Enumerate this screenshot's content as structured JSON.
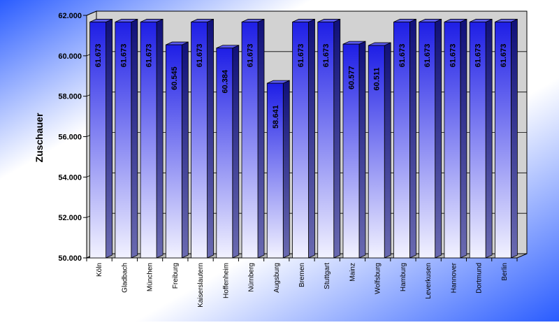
{
  "chart_data": {
    "type": "bar",
    "title": "",
    "xlabel": "",
    "ylabel": "Zuschauer",
    "ylim": [
      50000,
      62000
    ],
    "y_ticks": [
      50000,
      52000,
      54000,
      56000,
      58000,
      60000,
      62000
    ],
    "y_tick_labels": [
      "50.000",
      "52.000",
      "54.000",
      "56.000",
      "58.000",
      "60.000",
      "62.000"
    ],
    "grid": true,
    "legend": "none",
    "style": "3d",
    "categories": [
      "Köln",
      "Gladbach",
      "München",
      "Freiburg",
      "Kaiserslautern",
      "Hoffenheim",
      "Nürnberg",
      "Augsburg",
      "Bremen",
      "Stuttgart",
      "Mainz",
      "Wolfsburg",
      "Hamburg",
      "Leverkusen",
      "Hannover",
      "Dortmund",
      "Berlin"
    ],
    "values": [
      61673,
      61673,
      61673,
      60545,
      61673,
      60384,
      61673,
      58641,
      61673,
      61673,
      60577,
      60511,
      61673,
      61673,
      61673,
      61673,
      61673
    ],
    "data_labels": [
      "61.673",
      "61.673",
      "61.673",
      "60.545",
      "61.673",
      "60.384",
      "61.673",
      "58.641",
      "61.673",
      "61.673",
      "60.577",
      "60.511",
      "61.673",
      "61.673",
      "61.673",
      "61.673",
      "61.673"
    ],
    "colors": {
      "bar_front_top": "#1e1ee6",
      "bar_front_bottom": "#f2f2ff",
      "bar_side": "#10107a",
      "bar_top": "#5a5af0",
      "wall": "#d2d2d2",
      "floor": "#b4b4b4",
      "background_blue": "#2a5cff",
      "background_light": "#ffffff"
    }
  }
}
